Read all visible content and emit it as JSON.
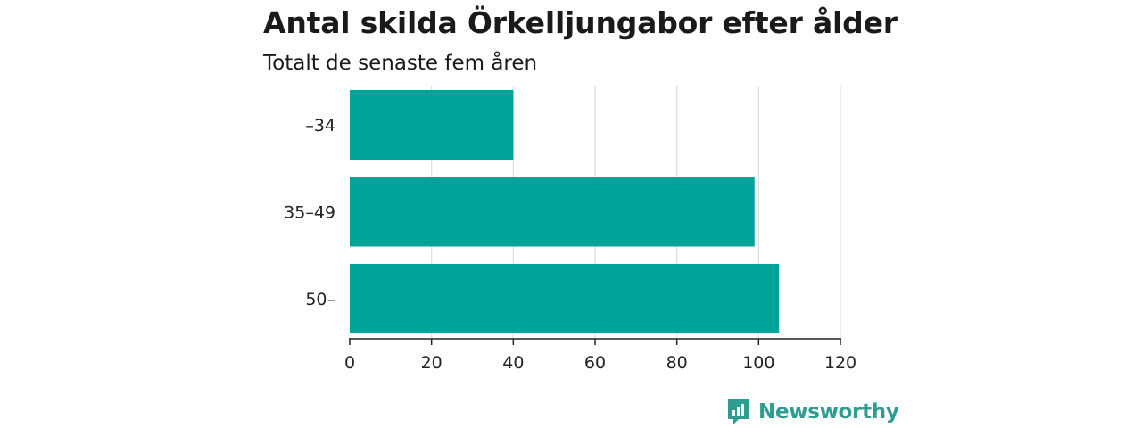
{
  "title": "Antal skilda Örkelljungabor efter ålder",
  "subtitle": "Totalt de senaste fem åren",
  "brand": "Newsworthy",
  "colors": {
    "bar": "#00a398",
    "grid": "#dddddd",
    "axis": "#222222",
    "brand": "#2f9c92"
  },
  "chart_data": {
    "type": "bar",
    "orientation": "horizontal",
    "categories": [
      "–34",
      "35–49",
      "50–"
    ],
    "values": [
      40,
      99,
      105
    ],
    "xlim": [
      0,
      120
    ],
    "xticks": [
      0,
      20,
      40,
      60,
      80,
      100,
      120
    ],
    "grid": true
  }
}
